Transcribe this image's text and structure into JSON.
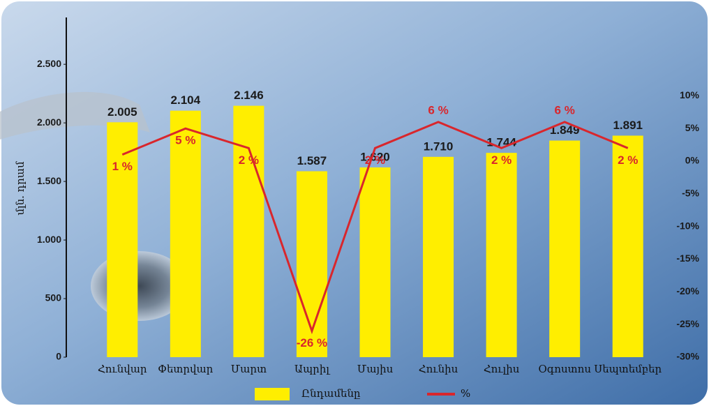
{
  "chart_data": {
    "type": "bar-line",
    "y_axis_label": "մլն. դրամ",
    "categories": [
      "Հունվար",
      "Փետրվար",
      "Մարտ",
      "Ապրիլ",
      "Մայիս",
      "Հունիս",
      "Հուլիս",
      "Օգոստոս",
      "Սեպտեմբեր"
    ],
    "series": [
      {
        "name": "Ընդամենը",
        "type": "bar",
        "color": "#ffee00",
        "values": [
          2005,
          2104,
          2146,
          1587,
          1620,
          1710,
          1744,
          1849,
          1891
        ],
        "value_labels": [
          "2.005",
          "2.104",
          "2.146",
          "1.587",
          "1.620",
          "1.710",
          "1.744",
          "1.849",
          "1.891"
        ]
      },
      {
        "name": "%",
        "type": "line",
        "axis": "y2",
        "color": "#d9262c",
        "values": [
          1,
          5,
          2,
          -26,
          2,
          6,
          2,
          6,
          2
        ],
        "value_labels": [
          "1 %",
          "5 %",
          "2 %",
          "-26 %",
          "2 %",
          "6 %",
          "2 %",
          "6 %",
          "2 %"
        ]
      }
    ],
    "ylim": [
      0,
      2900
    ],
    "yticks": [
      0,
      500,
      {
        "value": 1000,
        "label": "1.000"
      },
      {
        "value": 1500,
        "label": "1.500"
      },
      {
        "value": 2000,
        "label": "2.000"
      },
      {
        "value": 2500,
        "label": "2.500"
      }
    ],
    "y2lim": [
      -30,
      22
    ],
    "y2ticks": [
      {
        "value": -30,
        "label": "-30%"
      },
      {
        "value": -25,
        "label": "-25%"
      },
      {
        "value": -20,
        "label": "-20%"
      },
      {
        "value": -15,
        "label": "-15%"
      },
      {
        "value": -10,
        "label": "-10%"
      },
      {
        "value": -5,
        "label": "-5%"
      },
      {
        "value": 0,
        "label": "0%"
      },
      {
        "value": 5,
        "label": "5%"
      },
      {
        "value": 10,
        "label": "10%"
      }
    ],
    "legend": "bottom"
  }
}
